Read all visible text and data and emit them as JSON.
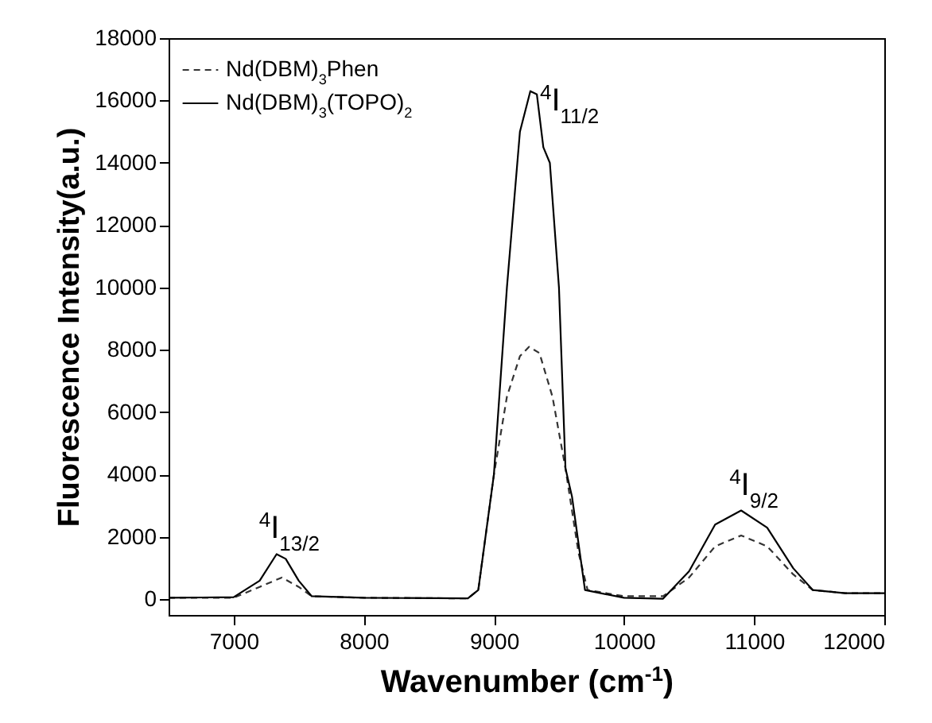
{
  "chart_data": {
    "type": "line",
    "xlabel": "Wavenumber (cm$^{-1}$)",
    "ylabel": "Fluorescence Intensity(a.u.)",
    "xlim": [
      6500,
      12000
    ],
    "xticks": [
      7000,
      8000,
      9000,
      10000,
      11000,
      12000
    ],
    "ylim": [
      -500,
      18000
    ],
    "yticks": [
      0,
      2000,
      4000,
      6000,
      8000,
      10000,
      12000,
      14000,
      16000,
      18000
    ],
    "grid": false,
    "legend": "top left",
    "marker": "none",
    "series": [
      {
        "name": "Nd(DBM)$_{3}$Phen",
        "color": "#333333",
        "line_style": "dashed",
        "x": [
          6500,
          7000,
          7200,
          7370,
          7500,
          7600,
          8000,
          8800,
          8880,
          9000,
          9100,
          9200,
          9270,
          9350,
          9450,
          9550,
          9650,
          9720,
          10000,
          10300,
          10500,
          10700,
          10900,
          11100,
          11300,
          11450,
          11700,
          12000
        ],
        "values": [
          50,
          50,
          400,
          700,
          400,
          100,
          50,
          30,
          300,
          4000,
          6500,
          7800,
          8100,
          7900,
          6500,
          4200,
          1500,
          300,
          100,
          100,
          700,
          1700,
          2050,
          1700,
          800,
          300,
          200,
          200
        ]
      },
      {
        "name": "Nd(DBM)$_{3}$(TOPO)$_{2}$",
        "color": "#000000",
        "line_style": "solid",
        "x": [
          6500,
          7000,
          7200,
          7330,
          7400,
          7500,
          7600,
          8000,
          8800,
          8880,
          9000,
          9100,
          9200,
          9280,
          9330,
          9380,
          9430,
          9500,
          9550,
          9600,
          9700,
          10000,
          10300,
          10500,
          10700,
          10900,
          11100,
          11300,
          11450,
          11700,
          12000
        ],
        "values": [
          50,
          70,
          600,
          1450,
          1300,
          600,
          100,
          50,
          30,
          300,
          4000,
          10000,
          15000,
          16300,
          16200,
          14500,
          14000,
          10000,
          4200,
          3300,
          300,
          50,
          20,
          900,
          2400,
          2850,
          2300,
          1000,
          300,
          200,
          200
        ]
      }
    ],
    "annotations": [
      {
        "text": "$^{4}$I$_{13/2}$",
        "x": 7330,
        "y": 1450
      },
      {
        "text": "$^{4}$I$_{11/2}$",
        "x": 9280,
        "y": 16300
      },
      {
        "text": "$^{4}$I$_{9/2}$",
        "x": 10900,
        "y": 2850
      }
    ]
  }
}
